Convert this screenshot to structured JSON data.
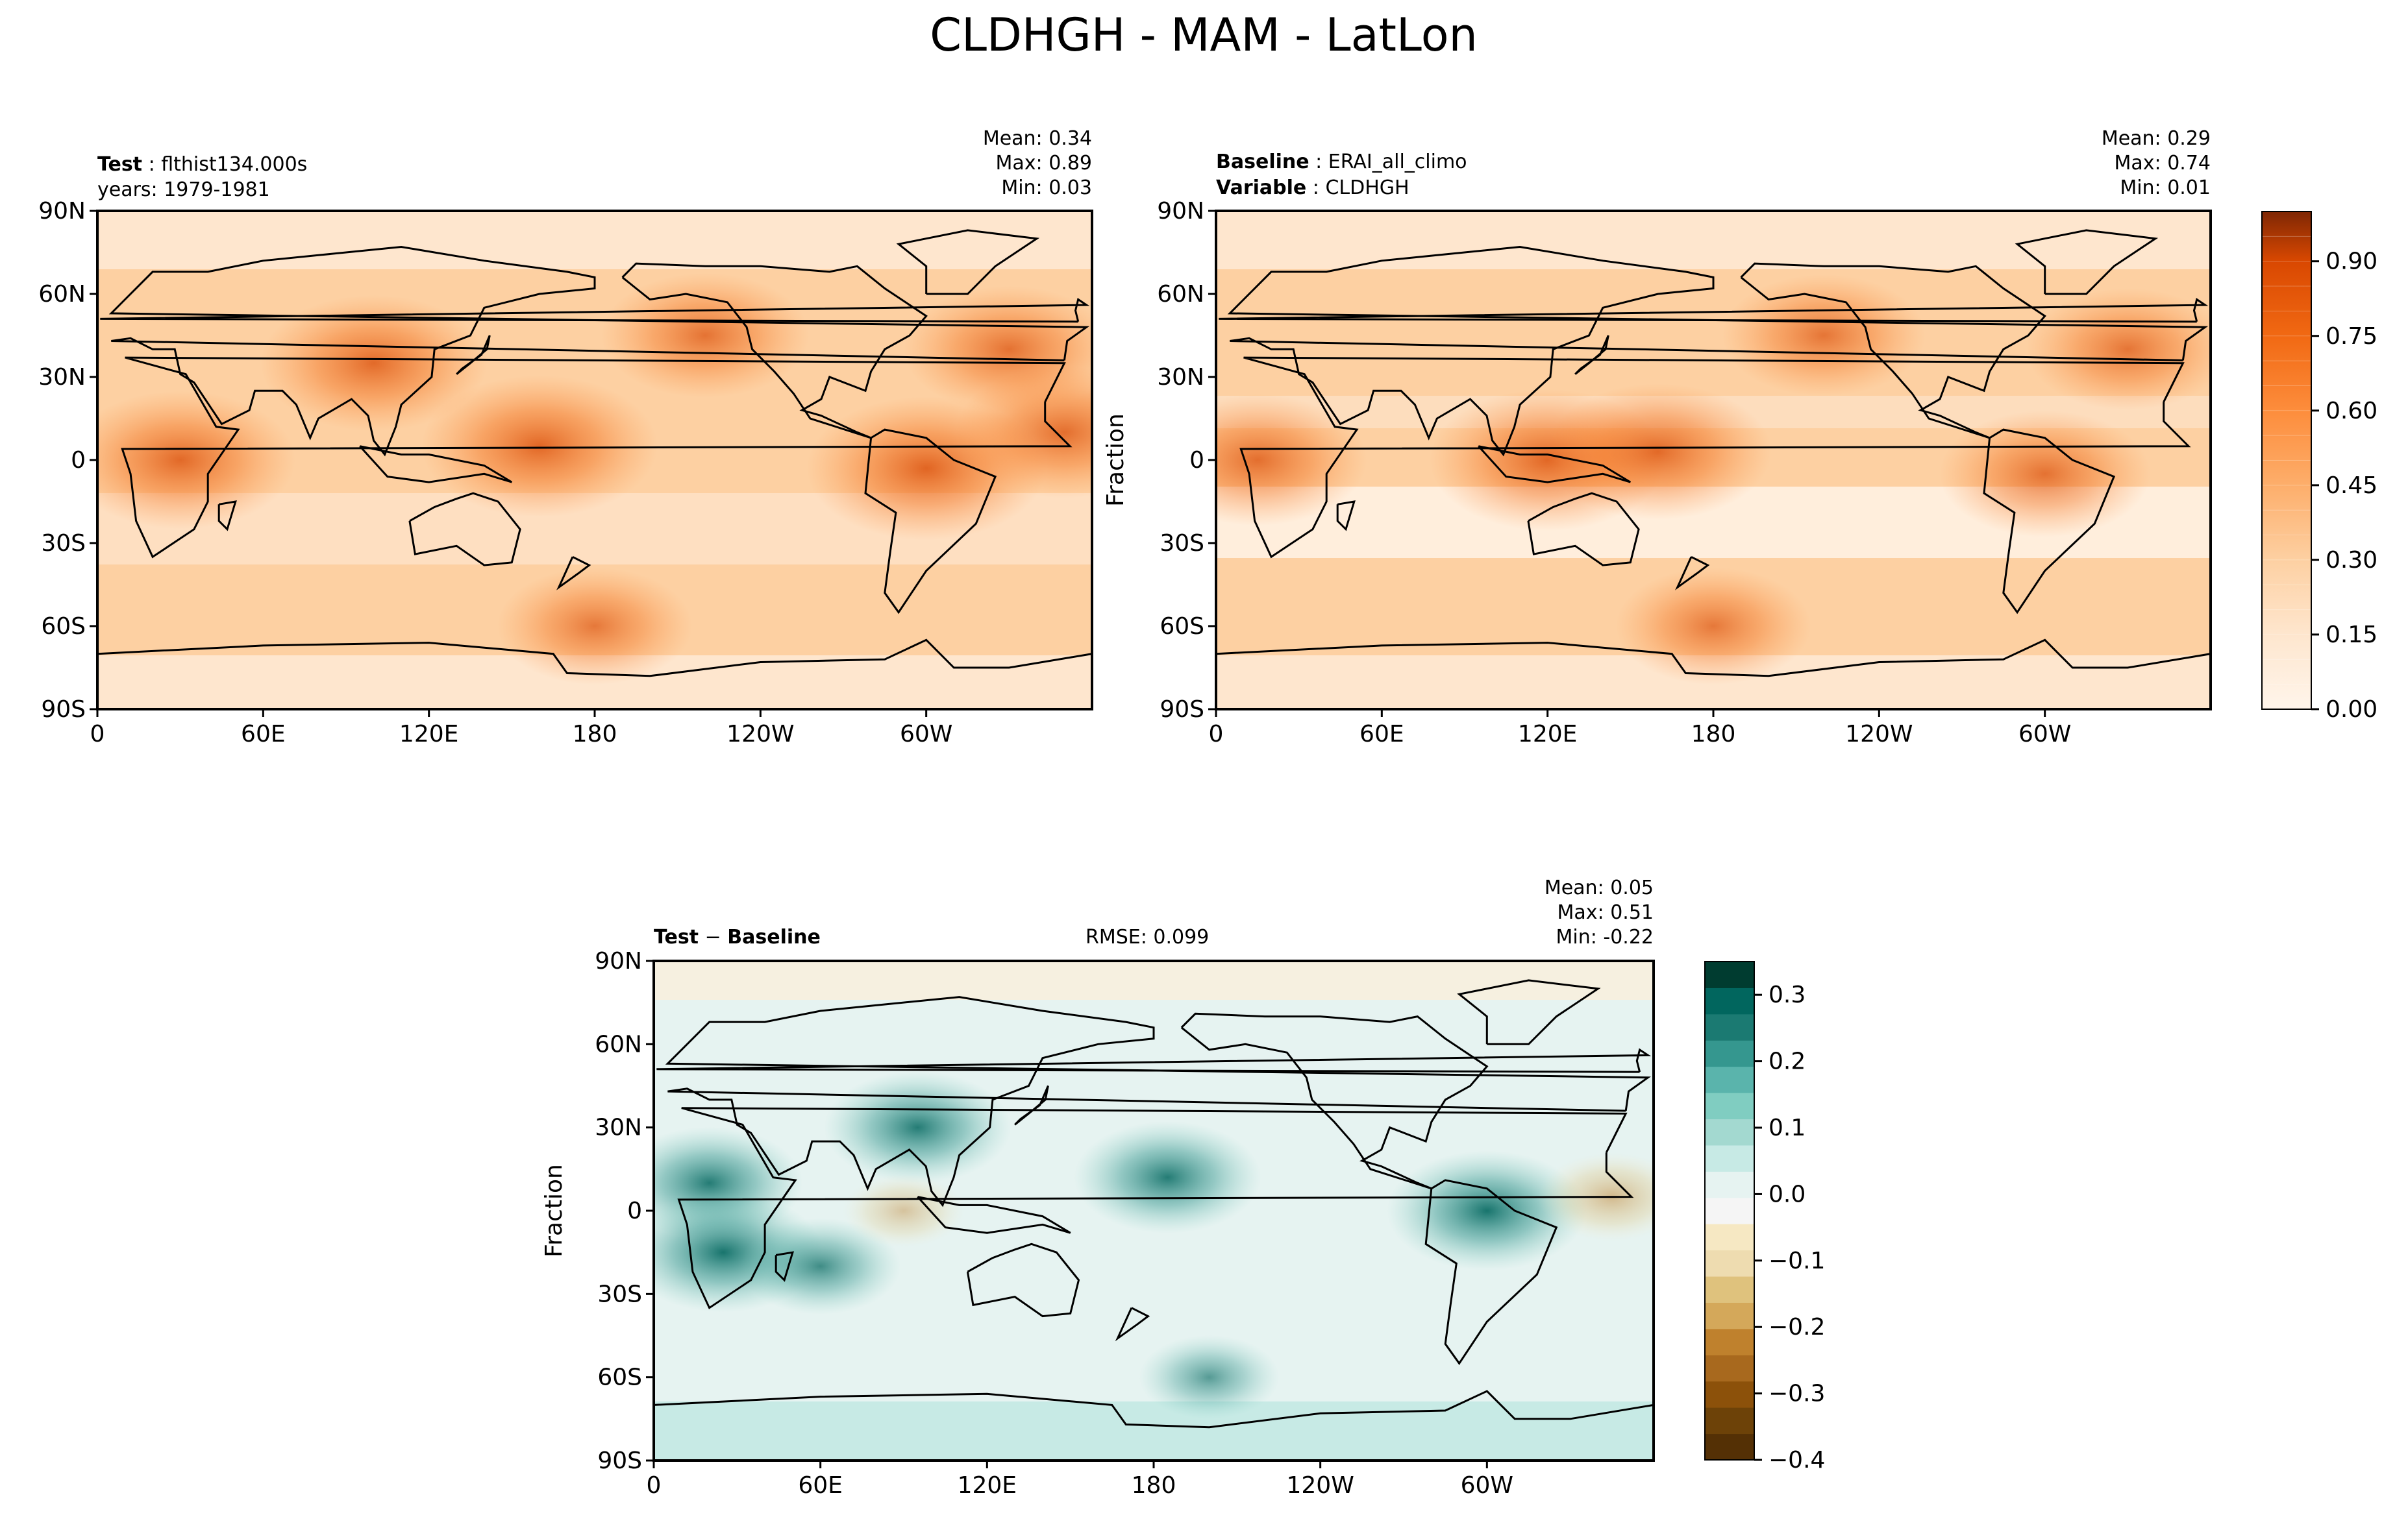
{
  "figure": {
    "title": "CLDHGH - MAM - LatLon",
    "background": "#ffffff"
  },
  "chart_data": [
    {
      "type": "heatmap",
      "panel": "test",
      "header_label": "Test",
      "header_value": "flthist134.000s",
      "header_line2": "years: 1979-1981",
      "stats": {
        "mean": "Mean:  0.34",
        "max": "Max:  0.89",
        "min": "Min:  0.03"
      },
      "ylabel": "",
      "xticks": [
        "0",
        "60E",
        "120E",
        "180",
        "120W",
        "60W"
      ],
      "yticks": [
        "90N",
        "60N",
        "30N",
        "0",
        "30S",
        "60S",
        "90S"
      ],
      "xlim": [
        0,
        360
      ],
      "ylim": [
        -90,
        90
      ],
      "colormap": "Oranges",
      "features": [
        {
          "lon": 30,
          "lat": 0,
          "value": 0.62
        },
        {
          "lon": 100,
          "lat": 35,
          "value": 0.6
        },
        {
          "lon": 160,
          "lat": 5,
          "value": 0.66
        },
        {
          "lon": 300,
          "lat": -3,
          "value": 0.68
        },
        {
          "lon": 350,
          "lat": 10,
          "value": 0.55
        },
        {
          "lon": 330,
          "lat": 40,
          "value": 0.5
        },
        {
          "lon": 220,
          "lat": 45,
          "value": 0.48
        },
        {
          "lon": 180,
          "lat": -60,
          "value": 0.4
        }
      ]
    },
    {
      "type": "heatmap",
      "panel": "baseline",
      "header_label": "Baseline",
      "header_value": "ERAI_all_climo",
      "header_label2": "Variable",
      "header_value2": "CLDHGH",
      "stats": {
        "mean": "Mean:  0.29",
        "max": "Max:  0.74",
        "min": "Min:  0.01"
      },
      "ylabel": "Fraction",
      "xticks": [
        "0",
        "60E",
        "120E",
        "180",
        "120W",
        "60W"
      ],
      "yticks": [
        "90N",
        "60N",
        "30N",
        "0",
        "30S",
        "60S",
        "90S"
      ],
      "xlim": [
        0,
        360
      ],
      "ylim": [
        -90,
        90
      ],
      "colormap": "Oranges",
      "colorbar": {
        "ticks": [
          "0.00",
          "0.15",
          "0.30",
          "0.45",
          "0.60",
          "0.75",
          "0.90"
        ],
        "range": [
          0,
          1.0
        ],
        "levels": 20
      },
      "features": [
        {
          "lon": 15,
          "lat": 0,
          "value": 0.55
        },
        {
          "lon": 120,
          "lat": 0,
          "value": 0.66
        },
        {
          "lon": 160,
          "lat": 3,
          "value": 0.6
        },
        {
          "lon": 300,
          "lat": -5,
          "value": 0.5
        },
        {
          "lon": 220,
          "lat": 45,
          "value": 0.45
        },
        {
          "lon": 330,
          "lat": 40,
          "value": 0.45
        },
        {
          "lon": 180,
          "lat": -60,
          "value": 0.4
        }
      ]
    },
    {
      "type": "heatmap",
      "panel": "difference",
      "header_label": "Test",
      "header_label_b": "Baseline",
      "rmse": "RMSE: 0.099",
      "stats": {
        "mean": "Mean:  0.05",
        "max": "Max:  0.51",
        "min": "Min: -0.22"
      },
      "ylabel": "Fraction",
      "xticks": [
        "0",
        "60E",
        "120E",
        "180",
        "120W",
        "60W"
      ],
      "yticks": [
        "90N",
        "60N",
        "30N",
        "0",
        "30S",
        "60S",
        "90S"
      ],
      "xlim": [
        0,
        360
      ],
      "ylim": [
        -90,
        90
      ],
      "colormap": "BrBG",
      "colorbar": {
        "ticks": [
          "0.3",
          "0.2",
          "0.1",
          "0.0",
          "−0.1",
          "−0.2",
          "−0.3",
          "−0.4"
        ],
        "range": [
          -0.4,
          0.35
        ]
      },
      "features": [
        {
          "lon": 20,
          "lat": 10,
          "value": 0.3
        },
        {
          "lon": 25,
          "lat": -15,
          "value": 0.35
        },
        {
          "lon": 95,
          "lat": 30,
          "value": 0.3
        },
        {
          "lon": 185,
          "lat": 12,
          "value": 0.3
        },
        {
          "lon": 300,
          "lat": 0,
          "value": 0.35
        },
        {
          "lon": 345,
          "lat": 5,
          "value": -0.15
        },
        {
          "lon": 60,
          "lat": -20,
          "value": 0.2
        },
        {
          "lon": 90,
          "lat": 0,
          "value": -0.05
        },
        {
          "lon": 200,
          "lat": -60,
          "value": 0.12
        }
      ]
    }
  ]
}
